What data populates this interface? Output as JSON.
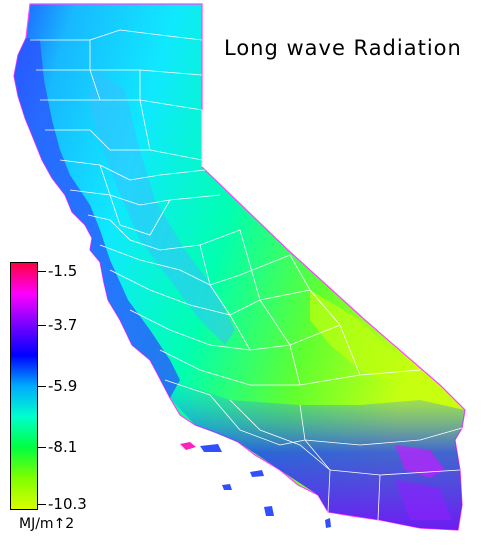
{
  "title": "Long wave Radiation",
  "legend": {
    "ticks": [
      "-1.5",
      "-3.7",
      "-5.9",
      "-8.1",
      "-10.3"
    ],
    "units": "MJ/m↑2",
    "colors": [
      "#ff0040",
      "#ff00ff",
      "#7a00ff",
      "#0000ff",
      "#00aaff",
      "#00ffcc",
      "#00ff40",
      "#80ff00",
      "#d8ff00"
    ]
  },
  "map": {
    "region": "California counties",
    "palette": {
      "coast_high": "#ff00c0",
      "coastal": "#3050ff",
      "valley": "#18c8ff",
      "mid": "#00ffa0",
      "east": "#40ff40",
      "desert": "#c8ff10",
      "se_desert": "#6020ff",
      "county_lines": "#ffffff"
    }
  }
}
